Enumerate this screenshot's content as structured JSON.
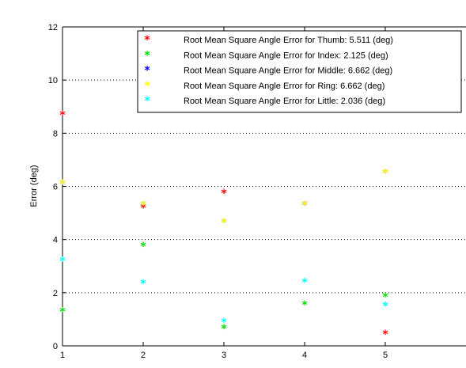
{
  "chart_data": {
    "type": "scatter",
    "title": "",
    "xlabel": "",
    "ylabel": "Error (deg)",
    "xlim": [
      1,
      6
    ],
    "ylim": [
      0,
      12
    ],
    "x_ticks": [
      "1",
      "2",
      "3",
      "4",
      "5"
    ],
    "y_ticks": [
      "0",
      "2",
      "4",
      "6",
      "8",
      "10",
      "12"
    ],
    "grid": "horizontal dotted",
    "legend_position": "top-right",
    "series": [
      {
        "name": "Root Mean Square Angle Error for Thumb: 5.511 (deg)",
        "color": "#ff0000",
        "x": [
          1,
          2,
          3,
          4,
          5
        ],
        "y": [
          8.7,
          5.2,
          5.75,
          5.3,
          0.45
        ]
      },
      {
        "name": "Root Mean Square Angle Error for Index: 2.125 (deg)",
        "color": "#00e000",
        "x": [
          1,
          2,
          3,
          4,
          5
        ],
        "y": [
          1.3,
          3.75,
          0.65,
          1.55,
          1.85
        ]
      },
      {
        "name": "Root Mean Square Angle Error for Middle: 6.662 (deg)",
        "color": "#0000ff",
        "x": [
          1,
          2,
          3,
          4,
          5
        ],
        "y": [
          6.1,
          5.3,
          4.65,
          5.3,
          6.5
        ]
      },
      {
        "name": "Root Mean Square Angle Error for Ring: 6.662 (deg)",
        "color": "#ffff00",
        "x": [
          1,
          2,
          3,
          4,
          5
        ],
        "y": [
          6.1,
          5.3,
          4.65,
          5.3,
          6.5
        ]
      },
      {
        "name": "Root Mean Square Angle Error for Little: 2.036 (deg)",
        "color": "#00ffff",
        "x": [
          1,
          2,
          3,
          4,
          5
        ],
        "y": [
          3.2,
          2.35,
          0.9,
          2.4,
          1.5
        ]
      }
    ]
  }
}
